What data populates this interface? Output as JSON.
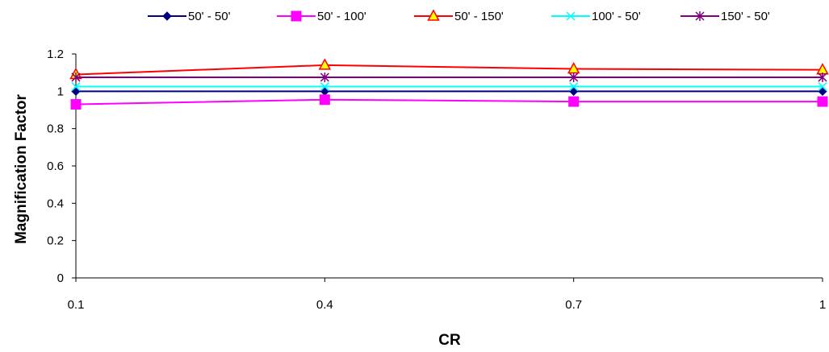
{
  "chart_data": {
    "type": "line",
    "title": "",
    "xlabel": "CR",
    "ylabel": "Magnification Factor",
    "x": [
      0.1,
      0.4,
      0.7,
      1
    ],
    "x_tick_labels": [
      "0.1",
      "0.4",
      "0.7",
      "1"
    ],
    "ylim": [
      0,
      1.2
    ],
    "y_ticks": [
      0,
      0.2,
      0.4,
      0.6,
      0.8,
      1,
      1.2
    ],
    "y_tick_labels": [
      "0",
      "0.2",
      "0.4",
      "0.6",
      "0.8",
      "1",
      "1.2"
    ],
    "grid": false,
    "legend_position": "top",
    "series": [
      {
        "name": "50' - 50'",
        "color": "#000080",
        "marker": "diamond",
        "values": [
          1.0,
          1.0,
          1.0,
          1.0
        ]
      },
      {
        "name": "50' - 100'",
        "color": "#FF00FF",
        "marker": "square",
        "values": [
          0.93,
          0.955,
          0.945,
          0.945
        ]
      },
      {
        "name": "50' - 150'",
        "color": "#FF0000",
        "marker": "triangle",
        "values": [
          1.09,
          1.14,
          1.12,
          1.115
        ]
      },
      {
        "name": "100' - 50'",
        "color": "#00FFFF",
        "marker": "x",
        "values": [
          1.025,
          1.025,
          1.025,
          1.025
        ]
      },
      {
        "name": "150' - 50'",
        "color": "#800080",
        "marker": "star",
        "values": [
          1.075,
          1.075,
          1.075,
          1.075
        ]
      }
    ]
  }
}
